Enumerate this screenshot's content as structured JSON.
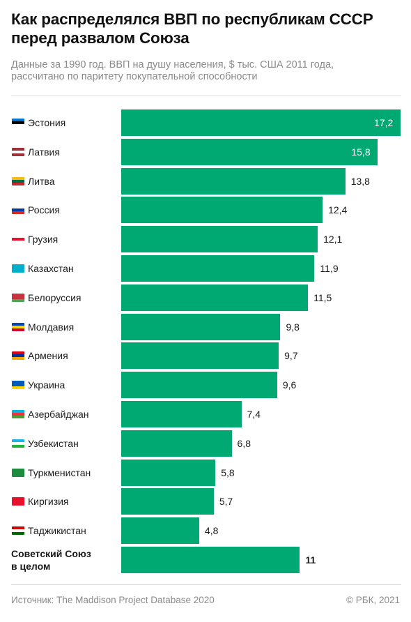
{
  "title": "Как распределялся ВВП по республикам СССР\nперед развалом Союза",
  "subtitle": "Данные за 1990 год. ВВП на душу населения, $ тыс. США 2011 года,\nрассчитано по паритету покупательной способности",
  "footer": {
    "source": "Источник:  The Maddison Project Database 2020",
    "copyright": "© РБК, 2021"
  },
  "colors": {
    "bar": "#00a971",
    "title": "#111111",
    "muted": "#8a8a8a"
  },
  "chart_data": {
    "type": "bar",
    "orientation": "horizontal",
    "categories": [
      "Эстония",
      "Латвия",
      "Литва",
      "Россия",
      "Грузия",
      "Казахстан",
      "Белоруссия",
      "Молдавия",
      "Армения",
      "Украина",
      "Азербайджан",
      "Узбекистан",
      "Туркменистан",
      "Киргизия",
      "Таджикистан",
      "Советский Союз\nв целом"
    ],
    "values": [
      17.2,
      15.8,
      13.8,
      12.4,
      12.1,
      11.9,
      11.5,
      9.8,
      9.7,
      9.6,
      7.4,
      6.8,
      5.8,
      5.7,
      4.8,
      11
    ],
    "value_labels": [
      "17,2",
      "15,8",
      "13,8",
      "12,4",
      "12,1",
      "11,9",
      "11,5",
      "9,8",
      "9,7",
      "9,6",
      "7,4",
      "6,8",
      "5,8",
      "5,7",
      "4,8",
      "11"
    ],
    "flags": [
      [
        "#0072ce",
        "#000000",
        "#ffffff"
      ],
      [
        "#9e3039",
        "#ffffff",
        "#9e3039"
      ],
      [
        "#fdb913",
        "#006a44",
        "#c1272d"
      ],
      [
        "#ffffff",
        "#0039a6",
        "#d52b1e"
      ],
      [
        "#ffffff",
        "#e8112d",
        "#ffffff"
      ],
      [
        "#00afca",
        "#00afca",
        "#00afca"
      ],
      [
        "#c8313e",
        "#c8313e",
        "#4aa657"
      ],
      [
        "#0046ae",
        "#ffd200",
        "#cc092f"
      ],
      [
        "#d90012",
        "#0033a0",
        "#f2a800"
      ],
      [
        "#005bbb",
        "#005bbb",
        "#ffd500"
      ],
      [
        "#00b5e2",
        "#ef3340",
        "#509e2f"
      ],
      [
        "#1eb3e8",
        "#ffffff",
        "#1eb53a"
      ],
      [
        "#1b8b3e",
        "#1b8b3e",
        "#1b8b3e"
      ],
      [
        "#e8112d",
        "#e8112d",
        "#e8112d"
      ],
      [
        "#cc0000",
        "#ffffff",
        "#006600"
      ]
    ],
    "highlight_last": true,
    "xlim": [
      0,
      17.2
    ],
    "legend": "none",
    "grid": false
  }
}
